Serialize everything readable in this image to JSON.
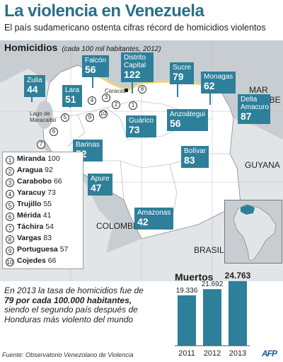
{
  "header": {
    "title": "La violencia en Venezuela",
    "subtitle": "El país sudamericano ostenta cifras récord de homicidios violentos"
  },
  "map": {
    "heading": "Homicidios",
    "heading_note": "(cada 100 mil habitantes, 2012)",
    "colors": {
      "box": "#2e7f9a",
      "land_venezuela": "#ffffff",
      "land_neighbors": "#e2e5e7",
      "sea": "#c7cdd1",
      "coast": "#f3d27a"
    },
    "states": [
      {
        "name": "Zulia",
        "rate": "44"
      },
      {
        "name": "Lara",
        "rate": "51"
      },
      {
        "name": "Falcón",
        "rate": "56"
      },
      {
        "name": "Distrito Capital",
        "rate": "122"
      },
      {
        "name": "Sucre",
        "rate": "79"
      },
      {
        "name": "Monagas",
        "rate": "62"
      },
      {
        "name": "Delta Amacuro",
        "rate": "87"
      },
      {
        "name": "Anzoátegui",
        "rate": "56"
      },
      {
        "name": "Guárico",
        "rate": "73"
      },
      {
        "name": "Barinas",
        "rate": "52"
      },
      {
        "name": "Apure",
        "rate": "47"
      },
      {
        "name": "Bolívar",
        "rate": "83"
      },
      {
        "name": "Amazonas",
        "rate": "42"
      }
    ],
    "small_states": [
      {
        "num": "1",
        "name": "Miranda",
        "rate": "100"
      },
      {
        "num": "2",
        "name": "Aragua",
        "rate": "92"
      },
      {
        "num": "3",
        "name": "Carabobo",
        "rate": "66"
      },
      {
        "num": "4",
        "name": "Yaracuy",
        "rate": "73"
      },
      {
        "num": "5",
        "name": "Trujillo",
        "rate": "55"
      },
      {
        "num": "6",
        "name": "Mérida",
        "rate": "41"
      },
      {
        "num": "7",
        "name": "Táchira",
        "rate": "54"
      },
      {
        "num": "8",
        "name": "Vargas",
        "rate": "83"
      },
      {
        "num": "9",
        "name": "Portuguesa",
        "rate": "57"
      },
      {
        "num": "10",
        "name": "Cojedes",
        "rate": "66"
      }
    ],
    "labels": {
      "caracas": "Caracas",
      "lago": "Lago de Maracaibo",
      "mar_caribe": "MAR CARIBE",
      "guyana": "GUYANA",
      "colombia": "COLOMBIA",
      "brasil": "BRASIL"
    }
  },
  "facts": {
    "part1": "En 2013 la tasa de homicidios fue de ",
    "bold": "79 por cada 100.000 habitantes,",
    "part2": " siendo el segundo país después de Honduras más violento del mundo"
  },
  "deaths": {
    "title": "Muertos"
  },
  "chart_data": {
    "type": "bar",
    "title": "Muertos",
    "categories": [
      "2011",
      "2012",
      "2013"
    ],
    "values": [
      19336,
      21692,
      24763
    ],
    "value_labels": [
      "19.336",
      "21.692",
      "24.763"
    ],
    "color": "#2e7f9a",
    "highlight_last": true
  },
  "footer": {
    "source": "Fuente: Observatorio Venezolano de Violencia",
    "logo": "AFP"
  }
}
